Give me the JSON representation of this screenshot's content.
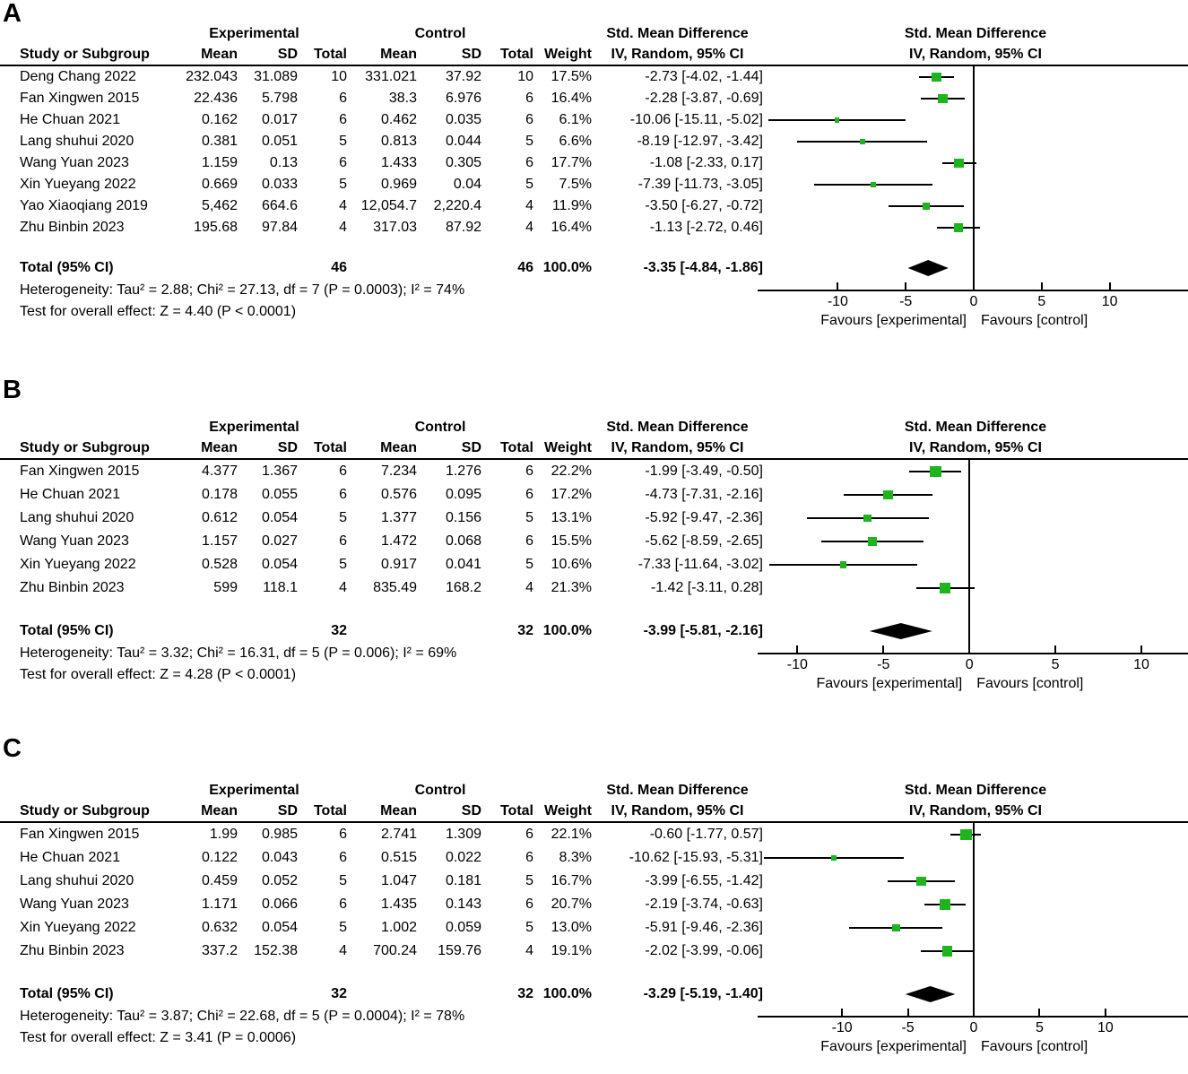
{
  "colors": {
    "marker_green": "#1eb41e",
    "line_black": "#000000",
    "diamond_black": "#000000"
  },
  "chart_data": [
    {
      "type": "forest",
      "panel_label": "A",
      "group_headers": {
        "experimental": "Experimental",
        "control": "Control",
        "smd_text_col": "Std. Mean Difference",
        "smd_plot_col": "Std. Mean Difference"
      },
      "column_headers": {
        "study": "Study or Subgroup",
        "mean1": "Mean",
        "sd1": "SD",
        "total1": "Total",
        "mean2": "Mean",
        "sd2": "SD",
        "total2": "Total",
        "weight": "Weight",
        "iv_text": "IV, Random, 95% CI",
        "iv_plot": "IV, Random, 95% CI"
      },
      "studies": [
        {
          "name": "Deng Chang 2022",
          "exp_mean": "232.043",
          "exp_sd": "31.089",
          "exp_total": "10",
          "ctl_mean": "331.021",
          "ctl_sd": "37.92",
          "ctl_total": "10",
          "weight": "17.5%",
          "smd_ci": "-2.73 [-4.02, -1.44]",
          "est": -2.73,
          "lo": -4.02,
          "hi": -1.44
        },
        {
          "name": "Fan Xingwen 2015",
          "exp_mean": "22.436",
          "exp_sd": "5.798",
          "exp_total": "6",
          "ctl_mean": "38.3",
          "ctl_sd": "6.976",
          "ctl_total": "6",
          "weight": "16.4%",
          "smd_ci": "-2.28 [-3.87, -0.69]",
          "est": -2.28,
          "lo": -3.87,
          "hi": -0.69
        },
        {
          "name": "He Chuan 2021",
          "exp_mean": "0.162",
          "exp_sd": "0.017",
          "exp_total": "6",
          "ctl_mean": "0.462",
          "ctl_sd": "0.035",
          "ctl_total": "6",
          "weight": "6.1%",
          "smd_ci": "-10.06 [-15.11, -5.02]",
          "est": -10.06,
          "lo": -15.11,
          "hi": -5.02
        },
        {
          "name": "Lang shuhui 2020",
          "exp_mean": "0.381",
          "exp_sd": "0.051",
          "exp_total": "5",
          "ctl_mean": "0.813",
          "ctl_sd": "0.044",
          "ctl_total": "5",
          "weight": "6.6%",
          "smd_ci": "-8.19 [-12.97, -3.42]",
          "est": -8.19,
          "lo": -12.97,
          "hi": -3.42
        },
        {
          "name": "Wang Yuan 2023",
          "exp_mean": "1.159",
          "exp_sd": "0.13",
          "exp_total": "6",
          "ctl_mean": "1.433",
          "ctl_sd": "0.305",
          "ctl_total": "6",
          "weight": "17.7%",
          "smd_ci": "-1.08 [-2.33, 0.17]",
          "est": -1.08,
          "lo": -2.33,
          "hi": 0.17
        },
        {
          "name": "Xin Yueyang 2022",
          "exp_mean": "0.669",
          "exp_sd": "0.033",
          "exp_total": "5",
          "ctl_mean": "0.969",
          "ctl_sd": "0.04",
          "ctl_total": "5",
          "weight": "7.5%",
          "smd_ci": "-7.39 [-11.73, -3.05]",
          "est": -7.39,
          "lo": -11.73,
          "hi": -3.05
        },
        {
          "name": "Yao Xiaoqiang 2019",
          "exp_mean": "5,462",
          "exp_sd": "664.6",
          "exp_total": "4",
          "ctl_mean": "12,054.7",
          "ctl_sd": "2,220.4",
          "ctl_total": "4",
          "weight": "11.9%",
          "smd_ci": "-3.50 [-6.27, -0.72]",
          "est": -3.5,
          "lo": -6.27,
          "hi": -0.72
        },
        {
          "name": "Zhu Binbin 2023",
          "exp_mean": "195.68",
          "exp_sd": "97.84",
          "exp_total": "4",
          "ctl_mean": "317.03",
          "ctl_sd": "87.92",
          "ctl_total": "4",
          "weight": "16.4%",
          "smd_ci": "-1.13 [-2.72, 0.46]",
          "est": -1.13,
          "lo": -2.72,
          "hi": 0.46
        }
      ],
      "total": {
        "label": "Total (95% CI)",
        "exp_total": "46",
        "ctl_total": "46",
        "weight": "100.0%",
        "smd_ci": "-3.35 [-4.84, -1.86]",
        "est": -3.35,
        "lo": -4.84,
        "hi": -1.86
      },
      "heterogeneity": "Heterogeneity: Tau² = 2.88; Chi² = 27.13, df = 7 (P = 0.0003); I² = 74%",
      "overall_test": "Test for overall effect: Z = 4.40 (P < 0.0001)",
      "axis": {
        "ticks": [
          -10,
          -5,
          0,
          5,
          10
        ],
        "xlim": [
          -15.5,
          15.5
        ],
        "favours_left": "Favours [experimental]",
        "favours_right": "Favours [control]"
      }
    },
    {
      "type": "forest",
      "panel_label": "B",
      "group_headers": {
        "experimental": "Experimental",
        "control": "Control",
        "smd_text_col": "Std. Mean Difference",
        "smd_plot_col": "Std. Mean Difference"
      },
      "column_headers": {
        "study": "Study or Subgroup",
        "mean1": "Mean",
        "sd1": "SD",
        "total1": "Total",
        "mean2": "Mean",
        "sd2": "SD",
        "total2": "Total",
        "weight": "Weight",
        "iv_text": "IV, Random, 95% CI",
        "iv_plot": "IV, Random, 95% CI"
      },
      "studies": [
        {
          "name": "Fan Xingwen 2015",
          "exp_mean": "4.377",
          "exp_sd": "1.367",
          "exp_total": "6",
          "ctl_mean": "7.234",
          "ctl_sd": "1.276",
          "ctl_total": "6",
          "weight": "22.2%",
          "smd_ci": "-1.99 [-3.49, -0.50]",
          "est": -1.99,
          "lo": -3.49,
          "hi": -0.5
        },
        {
          "name": "He Chuan 2021",
          "exp_mean": "0.178",
          "exp_sd": "0.055",
          "exp_total": "6",
          "ctl_mean": "0.576",
          "ctl_sd": "0.095",
          "ctl_total": "6",
          "weight": "17.2%",
          "smd_ci": "-4.73 [-7.31, -2.16]",
          "est": -4.73,
          "lo": -7.31,
          "hi": -2.16
        },
        {
          "name": "Lang shuhui 2020",
          "exp_mean": "0.612",
          "exp_sd": "0.054",
          "exp_total": "5",
          "ctl_mean": "1.377",
          "ctl_sd": "0.156",
          "ctl_total": "5",
          "weight": "13.1%",
          "smd_ci": "-5.92 [-9.47, -2.36]",
          "est": -5.92,
          "lo": -9.47,
          "hi": -2.36
        },
        {
          "name": "Wang Yuan 2023",
          "exp_mean": "1.157",
          "exp_sd": "0.027",
          "exp_total": "6",
          "ctl_mean": "1.472",
          "ctl_sd": "0.068",
          "ctl_total": "6",
          "weight": "15.5%",
          "smd_ci": "-5.62 [-8.59, -2.65]",
          "est": -5.62,
          "lo": -8.59,
          "hi": -2.65
        },
        {
          "name": "Xin Yueyang 2022",
          "exp_mean": "0.528",
          "exp_sd": "0.054",
          "exp_total": "5",
          "ctl_mean": "0.917",
          "ctl_sd": "0.041",
          "ctl_total": "5",
          "weight": "10.6%",
          "smd_ci": "-7.33 [-11.64, -3.02]",
          "est": -7.33,
          "lo": -11.64,
          "hi": -3.02
        },
        {
          "name": "Zhu Binbin 2023",
          "exp_mean": "599",
          "exp_sd": "118.1",
          "exp_total": "4",
          "ctl_mean": "835.49",
          "ctl_sd": "168.2",
          "ctl_total": "4",
          "weight": "21.3%",
          "smd_ci": "-1.42 [-3.11, 0.28]",
          "est": -1.42,
          "lo": -3.11,
          "hi": 0.28
        }
      ],
      "total": {
        "label": "Total (95% CI)",
        "exp_total": "32",
        "ctl_total": "32",
        "weight": "100.0%",
        "smd_ci": "-3.99 [-5.81, -2.16]",
        "est": -3.99,
        "lo": -5.81,
        "hi": -2.16
      },
      "heterogeneity": "Heterogeneity: Tau² = 3.32; Chi² = 16.31, df = 5 (P = 0.006); I² = 69%",
      "overall_test": "Test for overall effect: Z = 4.28 (P < 0.0001)",
      "axis": {
        "ticks": [
          -10,
          -5,
          0,
          5,
          10
        ],
        "xlim": [
          -12,
          12.5
        ],
        "favours_left": "Favours [experimental]",
        "favours_right": "Favours [control]"
      }
    },
    {
      "type": "forest",
      "panel_label": "C",
      "group_headers": {
        "experimental": "Experimental",
        "control": "Control",
        "smd_text_col": "Std. Mean Difference",
        "smd_plot_col": "Std. Mean Difference"
      },
      "column_headers": {
        "study": "Study or Subgroup",
        "mean1": "Mean",
        "sd1": "SD",
        "total1": "Total",
        "mean2": "Mean",
        "sd2": "SD",
        "total2": "Total",
        "weight": "Weight",
        "iv_text": "IV, Random, 95% CI",
        "iv_plot": "IV, Random, 95% CI"
      },
      "studies": [
        {
          "name": "Fan Xingwen 2015",
          "exp_mean": "1.99",
          "exp_sd": "0.985",
          "exp_total": "6",
          "ctl_mean": "2.741",
          "ctl_sd": "1.309",
          "ctl_total": "6",
          "weight": "22.1%",
          "smd_ci": "-0.60 [-1.77, 0.57]",
          "est": -0.6,
          "lo": -1.77,
          "hi": 0.57
        },
        {
          "name": "He Chuan 2021",
          "exp_mean": "0.122",
          "exp_sd": "0.043",
          "exp_total": "6",
          "ctl_mean": "0.515",
          "ctl_sd": "0.022",
          "ctl_total": "6",
          "weight": "8.3%",
          "smd_ci": "-10.62 [-15.93, -5.31]",
          "est": -10.62,
          "lo": -15.93,
          "hi": -5.31
        },
        {
          "name": "Lang shuhui 2020",
          "exp_mean": "0.459",
          "exp_sd": "0.052",
          "exp_total": "5",
          "ctl_mean": "1.047",
          "ctl_sd": "0.181",
          "ctl_total": "5",
          "weight": "16.7%",
          "smd_ci": "-3.99 [-6.55, -1.42]",
          "est": -3.99,
          "lo": -6.55,
          "hi": -1.42
        },
        {
          "name": "Wang Yuan 2023",
          "exp_mean": "1.171",
          "exp_sd": "0.066",
          "exp_total": "6",
          "ctl_mean": "1.435",
          "ctl_sd": "0.143",
          "ctl_total": "6",
          "weight": "20.7%",
          "smd_ci": "-2.19 [-3.74, -0.63]",
          "est": -2.19,
          "lo": -3.74,
          "hi": -0.63
        },
        {
          "name": "Xin Yueyang 2022",
          "exp_mean": "0.632",
          "exp_sd": "0.054",
          "exp_total": "5",
          "ctl_mean": "1.002",
          "ctl_sd": "0.059",
          "ctl_total": "5",
          "weight": "13.0%",
          "smd_ci": "-5.91 [-9.46, -2.36]",
          "est": -5.91,
          "lo": -9.46,
          "hi": -2.36
        },
        {
          "name": "Zhu Binbin 2023",
          "exp_mean": "337.2",
          "exp_sd": "152.38",
          "exp_total": "4",
          "ctl_mean": "700.24",
          "ctl_sd": "159.76",
          "ctl_total": "4",
          "weight": "19.1%",
          "smd_ci": "-2.02 [-3.99, -0.06]",
          "est": -2.02,
          "lo": -3.99,
          "hi": -0.06
        }
      ],
      "total": {
        "label": "Total (95% CI)",
        "exp_total": "32",
        "ctl_total": "32",
        "weight": "100.0%",
        "smd_ci": "-3.29 [-5.19, -1.40]",
        "est": -3.29,
        "lo": -5.19,
        "hi": -1.4
      },
      "heterogeneity": "Heterogeneity: Tau² = 3.87; Chi² = 22.68, df = 5 (P = 0.0004); I² = 78%",
      "overall_test": "Test for overall effect: Z = 3.41 (P = 0.0006)",
      "axis": {
        "ticks": [
          -10,
          -5,
          0,
          5,
          10
        ],
        "xlim": [
          -16,
          16
        ],
        "favours_left": "Favours [experimental]",
        "favours_right": "Favours [control]"
      }
    }
  ]
}
